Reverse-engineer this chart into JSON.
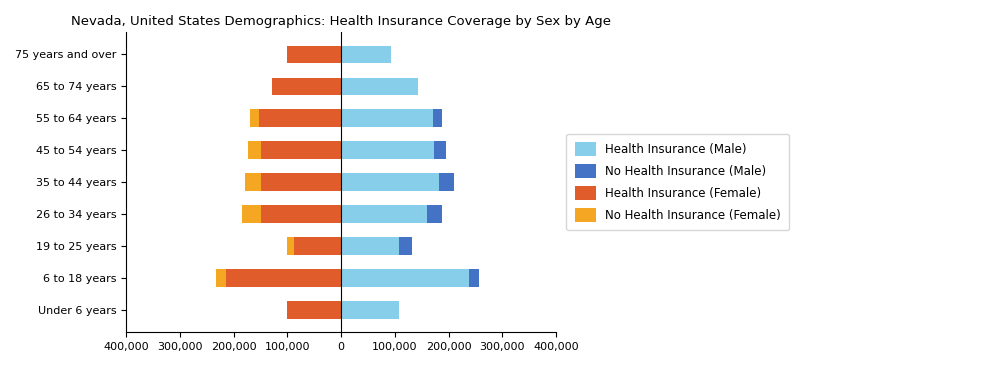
{
  "title": "Nevada, United States Demographics: Health Insurance Coverage by Sex by Age",
  "age_groups": [
    "Under 6 years",
    "6 to 18 years",
    "19 to 25 years",
    "26 to 34 years",
    "35 to 44 years",
    "45 to 54 years",
    "55 to 64 years",
    "65 to 74 years",
    "75 years and over"
  ],
  "health_ins_female": [
    100000,
    215000,
    88000,
    150000,
    150000,
    150000,
    152000,
    128000,
    100000
  ],
  "no_health_ins_female": [
    0,
    18000,
    13000,
    35000,
    28000,
    24000,
    18000,
    0,
    0
  ],
  "health_ins_male": [
    108000,
    238000,
    108000,
    160000,
    182000,
    172000,
    170000,
    143000,
    92000
  ],
  "no_health_ins_male": [
    0,
    18000,
    23000,
    28000,
    28000,
    23000,
    18000,
    0,
    0
  ],
  "color_health_ins_male": "#87CEEB",
  "color_no_health_ins_male": "#4472C4",
  "color_health_ins_female": "#E05C2A",
  "color_no_health_ins_female": "#F5A623",
  "xlim": [
    -400000,
    400000
  ],
  "xticks": [
    -400000,
    -300000,
    -200000,
    -100000,
    0,
    100000,
    200000,
    300000,
    400000
  ],
  "xtick_labels": [
    "400,000",
    "300,000",
    "200,000",
    "100,000",
    "0",
    "100,000",
    "200,000",
    "300,000",
    "400,000"
  ],
  "legend_labels": [
    "Health Insurance (Male)",
    "No Health Insurance (Male)",
    "Health Insurance (Female)",
    "No Health Insurance (Female)"
  ],
  "legend_colors": [
    "#87CEEB",
    "#4472C4",
    "#E05C2A",
    "#F5A623"
  ],
  "bar_height": 0.55,
  "title_fontsize": 9.5,
  "tick_fontsize": 8,
  "legend_fontsize": 8.5
}
